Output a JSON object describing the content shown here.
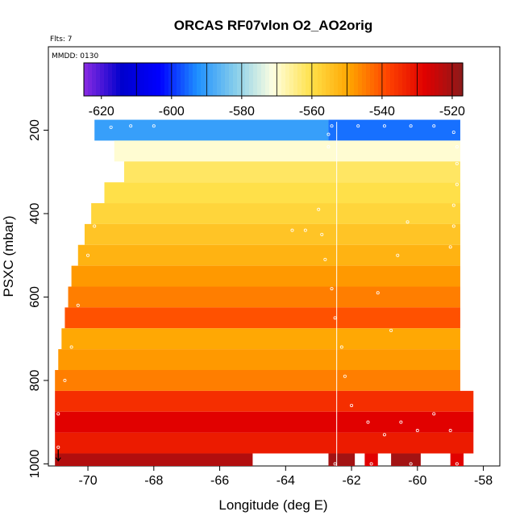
{
  "chart_data": {
    "type": "heatmap",
    "title": "ORCAS RF07vlon O2_AO2orig",
    "flts_label": "Flts: 7",
    "mmdd_label": "MMDD: 0130",
    "xlabel": "Longitude (deg E)",
    "ylabel": "PSXC (mbar)",
    "xlim": [
      -71.2,
      -57.5
    ],
    "ylim": [
      1005,
      0
    ],
    "x_ticks": [
      -70,
      -68,
      -66,
      -64,
      -62,
      -60,
      -58
    ],
    "y_ticks": [
      200,
      400,
      600,
      800,
      1000
    ],
    "colorbar": {
      "range": [
        -625,
        -517
      ],
      "ticks": [
        -620,
        -600,
        -580,
        -560,
        -540,
        -520
      ],
      "colors": [
        "#8a2be2",
        "#0000cd",
        "#0000ff",
        "#1e90ff",
        "#87ceeb",
        "#ffffe0",
        "#ffe14a",
        "#ffa500",
        "#ff4500",
        "#e00000",
        "#8b1a1a"
      ]
    },
    "rows": [
      {
        "p": [
          175,
          225
        ],
        "segments": [
          {
            "x": [
              -69.8,
              -62.7
            ],
            "value": -590
          },
          {
            "x": [
              -62.7,
              -58.7
            ],
            "value": -595
          }
        ]
      },
      {
        "p": [
          225,
          275
        ],
        "segments": [
          {
            "x": [
              -69.2,
              -58.7
            ],
            "value": -570
          }
        ]
      },
      {
        "p": [
          275,
          325
        ],
        "segments": [
          {
            "x": [
              -68.9,
              -58.7
            ],
            "value": -562
          }
        ]
      },
      {
        "p": [
          325,
          375
        ],
        "segments": [
          {
            "x": [
              -69.5,
              -58.7
            ],
            "value": -560
          }
        ]
      },
      {
        "p": [
          375,
          425
        ],
        "segments": [
          {
            "x": [
              -69.9,
              -58.7
            ],
            "value": -558
          }
        ]
      },
      {
        "p": [
          425,
          475
        ],
        "segments": [
          {
            "x": [
              -70.1,
              -58.7
            ],
            "value": -555
          }
        ]
      },
      {
        "p": [
          475,
          525
        ],
        "segments": [
          {
            "x": [
              -70.3,
              -58.7
            ],
            "value": -552
          }
        ]
      },
      {
        "p": [
          525,
          575
        ],
        "segments": [
          {
            "x": [
              -70.5,
              -58.7
            ],
            "value": -548
          }
        ]
      },
      {
        "p": [
          575,
          625
        ],
        "segments": [
          {
            "x": [
              -70.6,
              -58.7
            ],
            "value": -545
          }
        ]
      },
      {
        "p": [
          625,
          675
        ],
        "segments": [
          {
            "x": [
              -70.7,
              -58.7
            ],
            "value": -540
          }
        ]
      },
      {
        "p": [
          675,
          725
        ],
        "segments": [
          {
            "x": [
              -70.8,
              -58.7
            ],
            "value": -550
          }
        ]
      },
      {
        "p": [
          725,
          775
        ],
        "segments": [
          {
            "x": [
              -70.9,
              -58.7
            ],
            "value": -548
          }
        ]
      },
      {
        "p": [
          775,
          825
        ],
        "segments": [
          {
            "x": [
              -71.0,
              -58.7
            ],
            "value": -545
          }
        ]
      },
      {
        "p": [
          825,
          875
        ],
        "segments": [
          {
            "x": [
              -71.0,
              -58.3
            ],
            "value": -535
          }
        ]
      },
      {
        "p": [
          875,
          925
        ],
        "segments": [
          {
            "x": [
              -71.0,
              -58.3
            ],
            "value": -528
          }
        ]
      },
      {
        "p": [
          925,
          975
        ],
        "segments": [
          {
            "x": [
              -71.0,
              -58.3
            ],
            "value": -532
          }
        ]
      },
      {
        "p": [
          975,
          1005
        ],
        "segments": [
          {
            "x": [
              -71.0,
              -65.0
            ],
            "value": -522
          },
          {
            "x": [
              -62.7,
              -61.9
            ],
            "value": -520
          },
          {
            "x": [
              -61.6,
              -61.2
            ],
            "value": -528
          },
          {
            "x": [
              -60.8,
              -59.9
            ],
            "value": -520
          },
          {
            "x": [
              -59.0,
              -58.6
            ],
            "value": -528
          }
        ]
      }
    ],
    "flight_track_points": [
      {
        "lon": -69.3,
        "p": 193
      },
      {
        "lon": -68.7,
        "p": 190
      },
      {
        "lon": -68.0,
        "p": 190
      },
      {
        "lon": -62.6,
        "p": 190
      },
      {
        "lon": -61.8,
        "p": 190
      },
      {
        "lon": -61.0,
        "p": 190
      },
      {
        "lon": -60.2,
        "p": 190
      },
      {
        "lon": -59.5,
        "p": 190
      },
      {
        "lon": -58.9,
        "p": 205
      },
      {
        "lon": -58.8,
        "p": 240
      },
      {
        "lon": -58.8,
        "p": 280
      },
      {
        "lon": -58.8,
        "p": 330
      },
      {
        "lon": -58.9,
        "p": 380
      },
      {
        "lon": -58.9,
        "p": 430
      },
      {
        "lon": -59.0,
        "p": 480
      },
      {
        "lon": -62.7,
        "p": 210
      },
      {
        "lon": -62.7,
        "p": 240
      },
      {
        "lon": -63.0,
        "p": 390
      },
      {
        "lon": -62.9,
        "p": 450
      },
      {
        "lon": -62.8,
        "p": 510
      },
      {
        "lon": -62.6,
        "p": 580
      },
      {
        "lon": -62.5,
        "p": 650
      },
      {
        "lon": -62.3,
        "p": 720
      },
      {
        "lon": -62.2,
        "p": 790
      },
      {
        "lon": -62.0,
        "p": 860
      },
      {
        "lon": -61.5,
        "p": 900
      },
      {
        "lon": -61.0,
        "p": 930
      },
      {
        "lon": -60.5,
        "p": 900
      },
      {
        "lon": -60.0,
        "p": 920
      },
      {
        "lon": -59.5,
        "p": 880
      },
      {
        "lon": -59.0,
        "p": 920
      },
      {
        "lon": -61.2,
        "p": 590
      },
      {
        "lon": -60.8,
        "p": 680
      },
      {
        "lon": -60.3,
        "p": 420
      },
      {
        "lon": -60.6,
        "p": 500
      },
      {
        "lon": -70.3,
        "p": 620
      },
      {
        "lon": -70.5,
        "p": 720
      },
      {
        "lon": -70.7,
        "p": 800
      },
      {
        "lon": -70.9,
        "p": 880
      },
      {
        "lon": -70.9,
        "p": 960
      },
      {
        "lon": -69.8,
        "p": 430
      },
      {
        "lon": -70.0,
        "p": 500
      },
      {
        "lon": -63.8,
        "p": 440
      },
      {
        "lon": -63.4,
        "p": 440
      },
      {
        "lon": -62.5,
        "p": 1000
      },
      {
        "lon": -61.4,
        "p": 1000
      },
      {
        "lon": -60.2,
        "p": 1000
      },
      {
        "lon": -58.8,
        "p": 1000
      }
    ],
    "vertical_marker_lon": -62.45,
    "start_marker": {
      "lon": -70.9,
      "p": 985
    }
  }
}
